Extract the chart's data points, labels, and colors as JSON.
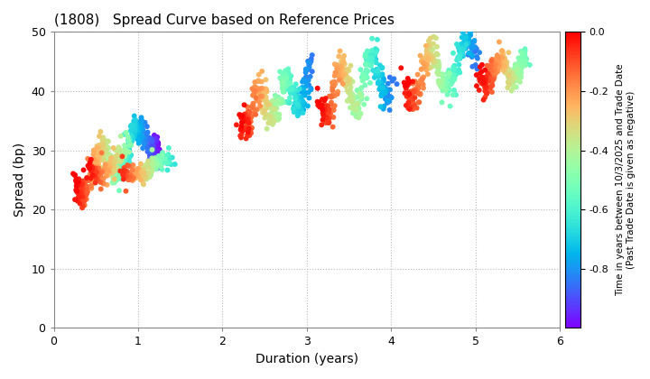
{
  "title": "(1808)   Spread Curve based on Reference Prices",
  "xlabel": "Duration (years)",
  "ylabel": "Spread (bp)",
  "xlim": [
    0,
    6
  ],
  "ylim": [
    0,
    50
  ],
  "xticks": [
    0,
    1,
    2,
    3,
    4,
    5,
    6
  ],
  "yticks": [
    0,
    10,
    20,
    30,
    40,
    50
  ],
  "colorbar_label": "Time in years between 10/3/2025 and Trade Date\n(Past Trade Date is given as negative)",
  "clim": [
    -1.0,
    0.0
  ],
  "colorbar_ticks": [
    0.0,
    -0.2,
    -0.4,
    -0.6,
    -0.8
  ],
  "background_color": "#ffffff",
  "grid_color": "#aaaaaa",
  "marker_size": 18
}
